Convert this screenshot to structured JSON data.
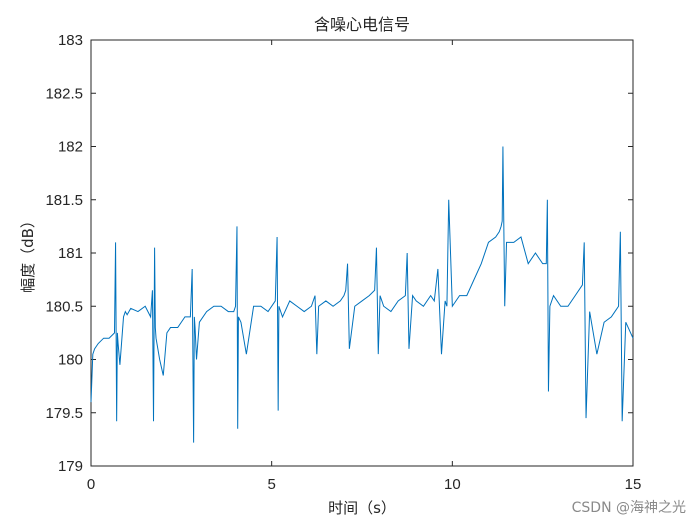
{
  "chart_data": {
    "type": "line",
    "title": "含噪心电信号",
    "xlabel": "时间（s）",
    "ylabel": "幅度（dB）",
    "xlim": [
      0,
      15
    ],
    "ylim": [
      179,
      183
    ],
    "xticks": [
      0,
      5,
      10,
      15
    ],
    "yticks": [
      179,
      179.5,
      180,
      180.5,
      181,
      181.5,
      182,
      182.5,
      183
    ],
    "xtick_labels": [
      "0",
      "5",
      "10",
      "15"
    ],
    "ytick_labels": [
      "179",
      "179.5",
      "180",
      "180.5",
      "181",
      "181.5",
      "182",
      "182.5",
      "183"
    ],
    "grid": false,
    "line_color": "#0072BD",
    "series": [
      {
        "x": [
          0,
          0.05,
          0.1,
          0.2,
          0.35,
          0.5,
          0.65,
          0.68,
          0.71,
          0.73,
          0.75,
          0.8,
          0.9,
          0.95,
          1.0,
          1.1,
          1.3,
          1.5,
          1.65,
          1.7,
          1.73,
          1.76,
          1.78,
          1.8,
          1.9,
          2.0,
          2.1,
          2.2,
          2.4,
          2.6,
          2.75,
          2.8,
          2.84,
          2.86,
          2.88,
          2.92,
          3.0,
          3.2,
          3.4,
          3.6,
          3.8,
          3.95,
          4.0,
          4.04,
          4.06,
          4.08,
          4.15,
          4.3,
          4.5,
          4.7,
          4.9,
          5.1,
          5.15,
          5.18,
          5.2,
          5.3,
          5.5,
          5.7,
          5.9,
          6.1,
          6.2,
          6.25,
          6.3,
          6.5,
          6.7,
          6.9,
          7.0,
          7.05,
          7.1,
          7.15,
          7.3,
          7.5,
          7.7,
          7.85,
          7.9,
          7.95,
          8.0,
          8.1,
          8.3,
          8.5,
          8.7,
          8.75,
          8.8,
          8.9,
          9.0,
          9.2,
          9.4,
          9.5,
          9.6,
          9.7,
          9.8,
          9.85,
          9.9,
          10.0,
          10.2,
          10.4,
          10.6,
          10.8,
          11.0,
          11.2,
          11.3,
          11.35,
          11.38,
          11.4,
          11.45,
          11.5,
          11.7,
          11.9,
          12.1,
          12.3,
          12.5,
          12.6,
          12.63,
          12.66,
          12.7,
          12.8,
          13.0,
          13.2,
          13.4,
          13.6,
          13.65,
          13.7,
          13.8,
          14.0,
          14.2,
          14.4,
          14.5,
          14.6,
          14.65,
          14.7,
          14.8,
          15.0
        ],
        "y": [
          179.6,
          180.05,
          180.1,
          180.15,
          180.2,
          180.2,
          180.25,
          181.1,
          179.42,
          180.25,
          180.15,
          179.95,
          180.4,
          180.45,
          180.42,
          180.48,
          180.45,
          180.5,
          180.4,
          180.65,
          179.42,
          181.05,
          180.3,
          180.2,
          180.0,
          179.85,
          180.25,
          180.3,
          180.3,
          180.4,
          180.4,
          180.85,
          179.22,
          180.4,
          180.3,
          180.0,
          180.35,
          180.45,
          180.5,
          180.5,
          180.45,
          180.45,
          180.5,
          181.25,
          179.35,
          180.4,
          180.35,
          180.05,
          180.5,
          180.5,
          180.45,
          180.55,
          181.15,
          179.52,
          180.5,
          180.4,
          180.55,
          180.5,
          180.45,
          180.5,
          180.6,
          180.05,
          180.5,
          180.55,
          180.5,
          180.55,
          180.6,
          180.65,
          180.9,
          180.1,
          180.5,
          180.55,
          180.6,
          180.65,
          181.05,
          180.05,
          180.6,
          180.5,
          180.45,
          180.55,
          180.6,
          181.0,
          180.1,
          180.6,
          180.55,
          180.5,
          180.6,
          180.55,
          180.85,
          180.05,
          180.55,
          180.5,
          181.5,
          180.5,
          180.6,
          180.6,
          180.75,
          180.9,
          181.1,
          181.15,
          181.2,
          181.25,
          181.3,
          182.0,
          180.5,
          181.1,
          181.1,
          181.15,
          180.9,
          181.0,
          180.9,
          180.9,
          181.5,
          179.7,
          180.5,
          180.6,
          180.5,
          180.5,
          180.6,
          180.7,
          181.1,
          179.45,
          180.45,
          180.05,
          180.35,
          180.4,
          180.45,
          180.5,
          181.2,
          179.42,
          180.35,
          180.2
        ]
      }
    ]
  },
  "watermark": "CSDN @海神之光"
}
